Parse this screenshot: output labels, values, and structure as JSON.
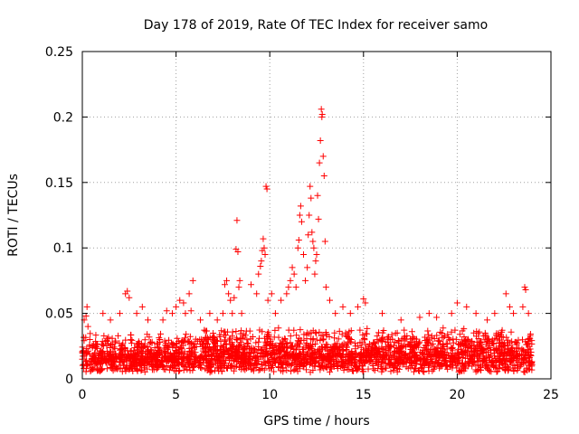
{
  "chart_data": {
    "type": "scatter",
    "title": "Day 178 of 2019, Rate Of TEC Index for receiver samo",
    "xlabel": "GPS time / hours",
    "ylabel": "ROTI / TECUs",
    "xlim": [
      0,
      25
    ],
    "ylim": [
      0,
      0.25
    ],
    "xticks": [
      0,
      5,
      10,
      15,
      20,
      25
    ],
    "xtick_labels": [
      "0",
      "5",
      "10",
      "15",
      "20",
      "25"
    ],
    "yticks": [
      0,
      0.05,
      0.1,
      0.15,
      0.2,
      0.25
    ],
    "ytick_labels": [
      "0",
      "0.05",
      "0.1",
      "0.15",
      "0.2",
      "0.25"
    ],
    "grid": true,
    "marker": "+",
    "color": "#ff0000",
    "series": [
      {
        "name": "ROTI",
        "points": [
          [
            0.1,
            0.045
          ],
          [
            0.2,
            0.048
          ],
          [
            0.25,
            0.055
          ],
          [
            0.3,
            0.04
          ],
          [
            0.4,
            0.03
          ],
          [
            1.1,
            0.05
          ],
          [
            1.5,
            0.045
          ],
          [
            2.0,
            0.05
          ],
          [
            2.3,
            0.065
          ],
          [
            2.4,
            0.067
          ],
          [
            2.5,
            0.062
          ],
          [
            2.9,
            0.05
          ],
          [
            3.2,
            0.055
          ],
          [
            3.5,
            0.045
          ],
          [
            4.3,
            0.045
          ],
          [
            4.5,
            0.052
          ],
          [
            4.8,
            0.05
          ],
          [
            5.0,
            0.055
          ],
          [
            5.2,
            0.06
          ],
          [
            5.4,
            0.058
          ],
          [
            5.5,
            0.05
          ],
          [
            5.7,
            0.065
          ],
          [
            5.8,
            0.052
          ],
          [
            5.9,
            0.075
          ],
          [
            6.3,
            0.045
          ],
          [
            6.8,
            0.05
          ],
          [
            7.2,
            0.045
          ],
          [
            7.5,
            0.05
          ],
          [
            7.6,
            0.072
          ],
          [
            7.7,
            0.075
          ],
          [
            7.8,
            0.065
          ],
          [
            7.9,
            0.06
          ],
          [
            8.0,
            0.05
          ],
          [
            8.1,
            0.062
          ],
          [
            8.2,
            0.099
          ],
          [
            8.25,
            0.121
          ],
          [
            8.3,
            0.097
          ],
          [
            8.35,
            0.07
          ],
          [
            8.4,
            0.075
          ],
          [
            8.5,
            0.05
          ],
          [
            9.0,
            0.072
          ],
          [
            9.3,
            0.065
          ],
          [
            9.4,
            0.08
          ],
          [
            9.5,
            0.086
          ],
          [
            9.55,
            0.09
          ],
          [
            9.6,
            0.098
          ],
          [
            9.65,
            0.107
          ],
          [
            9.7,
            0.1
          ],
          [
            9.75,
            0.095
          ],
          [
            9.8,
            0.147
          ],
          [
            9.85,
            0.145
          ],
          [
            9.9,
            0.06
          ],
          [
            10.1,
            0.065
          ],
          [
            10.3,
            0.05
          ],
          [
            10.6,
            0.06
          ],
          [
            10.9,
            0.065
          ],
          [
            11.0,
            0.07
          ],
          [
            11.1,
            0.075
          ],
          [
            11.2,
            0.085
          ],
          [
            11.3,
            0.08
          ],
          [
            11.4,
            0.07
          ],
          [
            11.5,
            0.1
          ],
          [
            11.55,
            0.106
          ],
          [
            11.6,
            0.125
          ],
          [
            11.65,
            0.132
          ],
          [
            11.7,
            0.12
          ],
          [
            11.8,
            0.095
          ],
          [
            11.9,
            0.075
          ],
          [
            12.0,
            0.085
          ],
          [
            12.05,
            0.11
          ],
          [
            12.1,
            0.125
          ],
          [
            12.15,
            0.147
          ],
          [
            12.2,
            0.138
          ],
          [
            12.25,
            0.112
          ],
          [
            12.3,
            0.105
          ],
          [
            12.35,
            0.1
          ],
          [
            12.4,
            0.08
          ],
          [
            12.45,
            0.09
          ],
          [
            12.5,
            0.095
          ],
          [
            12.55,
            0.14
          ],
          [
            12.6,
            0.122
          ],
          [
            12.65,
            0.165
          ],
          [
            12.7,
            0.182
          ],
          [
            12.75,
            0.206
          ],
          [
            12.78,
            0.2
          ],
          [
            12.8,
            0.202
          ],
          [
            12.85,
            0.17
          ],
          [
            12.9,
            0.155
          ],
          [
            12.95,
            0.105
          ],
          [
            13.0,
            0.07
          ],
          [
            13.2,
            0.06
          ],
          [
            13.5,
            0.05
          ],
          [
            13.9,
            0.055
          ],
          [
            14.3,
            0.05
          ],
          [
            14.7,
            0.055
          ],
          [
            15.0,
            0.061
          ],
          [
            15.1,
            0.058
          ],
          [
            16.0,
            0.05
          ],
          [
            17.0,
            0.045
          ],
          [
            18.0,
            0.047
          ],
          [
            18.5,
            0.05
          ],
          [
            18.9,
            0.047
          ],
          [
            19.7,
            0.05
          ],
          [
            20.0,
            0.058
          ],
          [
            20.5,
            0.055
          ],
          [
            21.0,
            0.05
          ],
          [
            21.6,
            0.045
          ],
          [
            22.0,
            0.05
          ],
          [
            22.6,
            0.065
          ],
          [
            22.8,
            0.055
          ],
          [
            23.0,
            0.05
          ],
          [
            23.5,
            0.055
          ],
          [
            23.6,
            0.07
          ],
          [
            23.65,
            0.068
          ],
          [
            23.8,
            0.05
          ]
        ],
        "dense_band": [
          {
            "x": [
              0.0,
              6.3
            ],
            "min": 0.005,
            "max": 0.035
          },
          {
            "x": [
              6.3,
              24.0
            ],
            "min": 0.005,
            "max": 0.04
          }
        ]
      }
    ]
  }
}
